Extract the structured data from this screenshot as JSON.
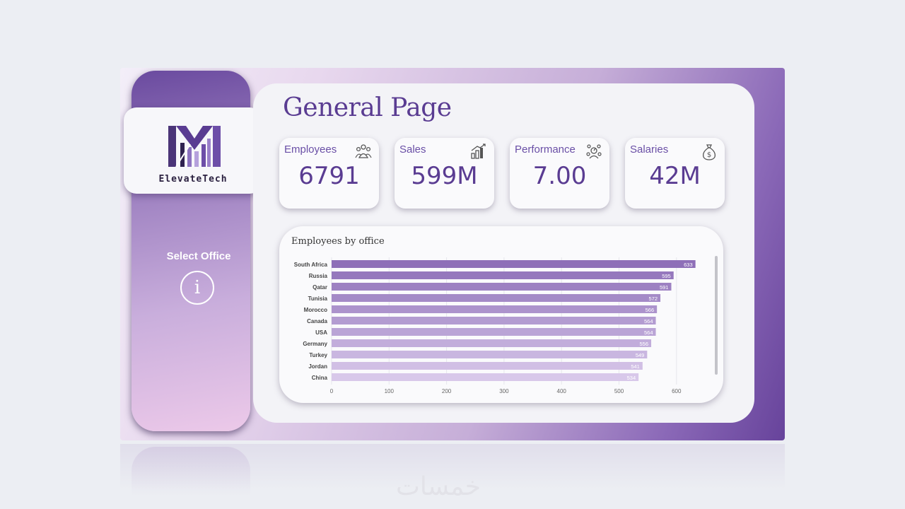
{
  "brand": {
    "name": "ElevateTech"
  },
  "sidebar": {
    "filter_label": "Select Office",
    "info_icon_glyph": "i"
  },
  "page": {
    "title": "General Page"
  },
  "kpis": [
    {
      "label": "Employees",
      "value": "6791",
      "icon": "people-group-icon"
    },
    {
      "label": "Sales",
      "value": "599M",
      "icon": "bar-growth-icon"
    },
    {
      "label": "Performance",
      "value": "7.00",
      "icon": "team-gauge-icon"
    },
    {
      "label": "Salaries",
      "value": "42M",
      "icon": "money-bag-icon"
    }
  ],
  "chart_data": {
    "type": "bar",
    "orientation": "horizontal",
    "title": "Employees by office",
    "categories": [
      "South Africa",
      "Russia",
      "Qatar",
      "Tunisia",
      "Morocco",
      "Canada",
      "USA",
      "Germany",
      "Turkey",
      "Jordan",
      "China"
    ],
    "values": [
      633,
      595,
      591,
      572,
      566,
      564,
      564,
      556,
      549,
      541,
      534
    ],
    "xticks": [
      0,
      100,
      200,
      300,
      400,
      500,
      600
    ],
    "xlim": [
      0,
      640
    ],
    "grid": true
  },
  "colors": {
    "accent": "#5a3c92",
    "bar_dark": "#8e6fb8",
    "bar_light": "#d8c8ea",
    "kpi_label": "#6a4fa6"
  },
  "watermark": "خمسات"
}
